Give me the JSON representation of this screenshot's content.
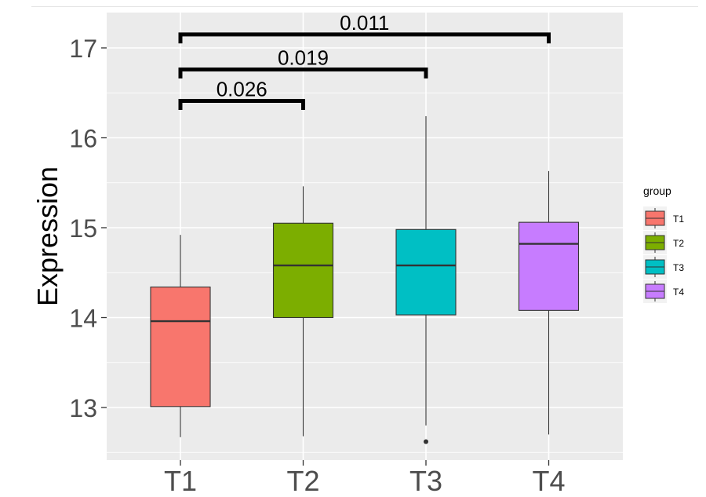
{
  "chart_data": {
    "type": "boxplot",
    "title": "",
    "xlabel": "",
    "ylabel": "Expression",
    "ylim": [
      12.5,
      17.35
    ],
    "yticks": [
      13,
      14,
      15,
      16,
      17
    ],
    "grid": true,
    "categories": [
      "T1",
      "T2",
      "T3",
      "T4"
    ],
    "boxes": [
      {
        "group": "T1",
        "whisker_low": 12.67,
        "q1": 13.01,
        "median": 13.96,
        "q3": 14.34,
        "whisker_high": 14.92,
        "outliers": []
      },
      {
        "group": "T2",
        "whisker_low": 12.68,
        "q1": 14.0,
        "median": 14.58,
        "q3": 15.05,
        "whisker_high": 15.46,
        "outliers": []
      },
      {
        "group": "T3",
        "whisker_low": 12.8,
        "q1": 14.03,
        "median": 14.58,
        "q3": 14.98,
        "whisker_high": 16.24,
        "outliers": [
          12.62
        ]
      },
      {
        "group": "T4",
        "whisker_low": 12.7,
        "q1": 14.08,
        "median": 14.82,
        "q3": 15.06,
        "whisker_high": 15.63,
        "outliers": []
      }
    ],
    "comparisons": [
      {
        "from": "T1",
        "to": "T2",
        "label": "0.026",
        "y_low": 16.31,
        "y_high": 16.41
      },
      {
        "from": "T1",
        "to": "T3",
        "label": "0.019",
        "y_low": 16.66,
        "y_high": 16.76
      },
      {
        "from": "T1",
        "to": "T4",
        "label": "0.011",
        "y_low": 17.05,
        "y_high": 17.15
      }
    ],
    "legend": {
      "title": "group",
      "placement": "right",
      "entries": [
        "T1",
        "T2",
        "T3",
        "T4"
      ]
    },
    "colors": {
      "T1": "#F8766D",
      "T2": "#7CAE00",
      "T3": "#00BFC4",
      "T4": "#C77CFF",
      "panel": "#EBEBEB",
      "grid": "#FFFFFF"
    }
  }
}
